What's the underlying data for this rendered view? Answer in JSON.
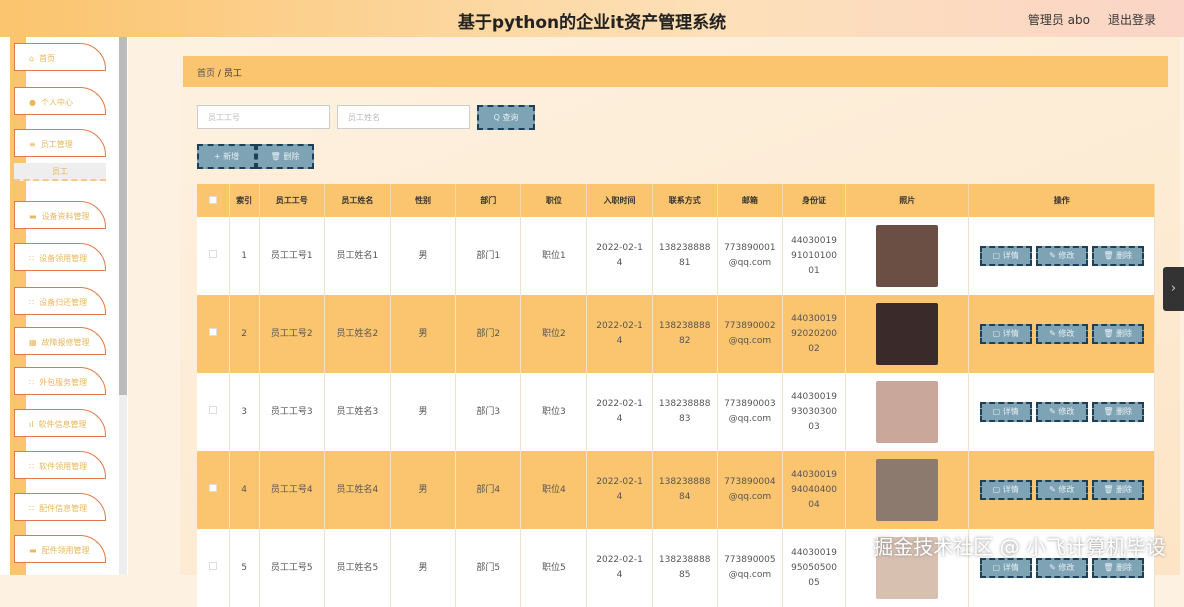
{
  "header": {
    "title": "基于python的企业it资产管理系统",
    "user": "管理员 abo",
    "logout": "退出登录"
  },
  "sidebar": {
    "items": [
      {
        "label": "首页",
        "icon": "home-icon"
      },
      {
        "label": "个人中心",
        "icon": "user-icon"
      },
      {
        "label": "员工管理",
        "icon": "users-icon"
      },
      {
        "label": "设备资料管理",
        "icon": "device-icon"
      },
      {
        "label": "设备领用管理",
        "icon": "grid-icon"
      },
      {
        "label": "设备归还管理",
        "icon": "grid-icon"
      },
      {
        "label": "故障报修管理",
        "icon": "repair-icon"
      },
      {
        "label": "外包服务管理",
        "icon": "grid-icon"
      },
      {
        "label": "软件信息管理",
        "icon": "chart-icon"
      },
      {
        "label": "软件领用管理",
        "icon": "grid-icon"
      },
      {
        "label": "配件信息管理",
        "icon": "grid-icon"
      },
      {
        "label": "配件领用管理",
        "icon": "device-icon"
      }
    ],
    "sub_item": "员工"
  },
  "breadcrumb": {
    "home": "首页",
    "sep": "/",
    "current": "员工"
  },
  "search": {
    "id_placeholder": "员工工号",
    "name_placeholder": "员工姓名",
    "query": "Q 查询"
  },
  "actions": {
    "add": "+ 新增",
    "delete": "🗑 删除"
  },
  "table": {
    "headers": [
      "索引",
      "员工工号",
      "员工姓名",
      "性别",
      "部门",
      "职位",
      "入职时间",
      "联系方式",
      "邮箱",
      "身份证",
      "照片",
      "操作"
    ],
    "row_actions": {
      "detail": "▢ 详情",
      "edit": "✎ 修改",
      "delete": "🗑 删除"
    },
    "rows": [
      {
        "index": "1",
        "id": "员工工号1",
        "name": "员工姓名1",
        "gender": "男",
        "dept": "部门1",
        "position": "职位1",
        "date": "2022-02-14",
        "phone": "13823888881",
        "email": "773890001@qq.com",
        "idcard": "440300199101010001",
        "photo_color": "#6b4f45"
      },
      {
        "index": "2",
        "id": "员工工号2",
        "name": "员工姓名2",
        "gender": "男",
        "dept": "部门2",
        "position": "职位2",
        "date": "2022-02-14",
        "phone": "13823888882",
        "email": "773890002@qq.com",
        "idcard": "440300199202020002",
        "photo_color": "#3a2a2a"
      },
      {
        "index": "3",
        "id": "员工工号3",
        "name": "员工姓名3",
        "gender": "男",
        "dept": "部门3",
        "position": "职位3",
        "date": "2022-02-14",
        "phone": "13823888883",
        "email": "773890003@qq.com",
        "idcard": "440300199303030003",
        "photo_color": "#c9a79a"
      },
      {
        "index": "4",
        "id": "员工工号4",
        "name": "员工姓名4",
        "gender": "男",
        "dept": "部门4",
        "position": "职位4",
        "date": "2022-02-14",
        "phone": "13823888884",
        "email": "773890004@qq.com",
        "idcard": "440300199404040004",
        "photo_color": "#8c7a6e"
      },
      {
        "index": "5",
        "id": "员工工号5",
        "name": "员工姓名5",
        "gender": "男",
        "dept": "部门5",
        "position": "职位5",
        "date": "2022-02-14",
        "phone": "13823888885",
        "email": "773890005@qq.com",
        "idcard": "440300199505050005",
        "photo_color": "#d8c0b0"
      }
    ]
  },
  "watermark": "掘金技术社区 @ 小飞计算机毕设"
}
